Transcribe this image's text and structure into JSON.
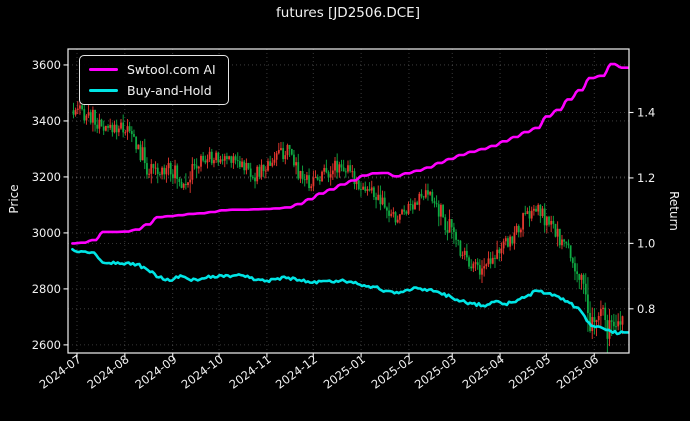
{
  "figure": {
    "title": "futures [JD2506.DCE]",
    "background": "#000000",
    "text_color": "#f2f2f2"
  },
  "legend": {
    "position": "upper-left",
    "items": [
      {
        "label": "Swtool.com AI",
        "color": "#ff00ff"
      },
      {
        "label": "Buy-and-Hold",
        "color": "#00e5e5"
      }
    ]
  },
  "axes": {
    "left_label": "Price",
    "right_label": "Return",
    "left_ticks": [
      {
        "v": 3600,
        "label": "3600"
      },
      {
        "v": 3400,
        "label": "3400"
      },
      {
        "v": 3200,
        "label": "3200"
      },
      {
        "v": 3000,
        "label": "3000"
      },
      {
        "v": 2800,
        "label": "2800"
      },
      {
        "v": 2600,
        "label": "2600"
      }
    ],
    "right_ticks": [
      {
        "v": 1.4,
        "label": "1.4"
      },
      {
        "v": 1.2,
        "label": "1.2"
      },
      {
        "v": 1.0,
        "label": "1.0"
      },
      {
        "v": 0.8,
        "label": "0.8"
      }
    ],
    "x_ticks": [
      "2024-07",
      "2024-08",
      "2024-09",
      "2024-10",
      "2024-11",
      "2024-12",
      "2025-01",
      "2025-02",
      "2025-03",
      "2025-04",
      "2025-05",
      "2025-06"
    ]
  },
  "chart_data": {
    "type": "candlestick",
    "title": "futures [JD2506.DCE]",
    "xlabel": "",
    "ylabel_left": "Price",
    "ylabel_right": "Return",
    "grid": true,
    "legend_position": "upper-left",
    "price_ylim": [
      2571,
      3657
    ],
    "return_ylim": [
      0.665,
      1.594
    ],
    "price_ticks": [
      2600,
      2800,
      3000,
      3200,
      3400,
      3600
    ],
    "return_ticks": [
      0.8,
      1.0,
      1.2,
      1.4
    ],
    "month_ticks": [
      "2024-07",
      "2024-08",
      "2024-09",
      "2024-10",
      "2024-11",
      "2024-12",
      "2025-01",
      "2025-02",
      "2025-03",
      "2025-04",
      "2025-05",
      "2025-06"
    ],
    "candle_up_color": "#e8382f",
    "candle_down_color": "#0eab43",
    "note": "weekly-sampled values read from plot; daily bars are denser in source",
    "x_dates": [
      "2024-06-28",
      "2024-07-05",
      "2024-07-12",
      "2024-07-19",
      "2024-07-26",
      "2024-08-02",
      "2024-08-09",
      "2024-08-16",
      "2024-08-23",
      "2024-08-30",
      "2024-09-06",
      "2024-09-13",
      "2024-09-20",
      "2024-09-27",
      "2024-10-04",
      "2024-10-11",
      "2024-10-18",
      "2024-10-25",
      "2024-11-01",
      "2024-11-08",
      "2024-11-15",
      "2024-11-22",
      "2024-11-29",
      "2024-12-06",
      "2024-12-13",
      "2024-12-20",
      "2024-12-27",
      "2025-01-03",
      "2025-01-10",
      "2025-01-17",
      "2025-01-24",
      "2025-01-31",
      "2025-02-07",
      "2025-02-14",
      "2025-02-21",
      "2025-02-28",
      "2025-03-07",
      "2025-03-14",
      "2025-03-21",
      "2025-03-28",
      "2025-04-04",
      "2025-04-11",
      "2025-04-18",
      "2025-04-25",
      "2025-05-02",
      "2025-05-09",
      "2025-05-16",
      "2025-05-23",
      "2025-05-30",
      "2025-06-06",
      "2025-06-13",
      "2025-06-20"
    ],
    "price_weekly": {
      "close": [
        3420,
        3435,
        3410,
        3360,
        3380,
        3375,
        3320,
        3235,
        3200,
        3255,
        3180,
        3210,
        3255,
        3270,
        3260,
        3275,
        3240,
        3205,
        3235,
        3280,
        3290,
        3225,
        3180,
        3205,
        3230,
        3245,
        3200,
        3165,
        3140,
        3085,
        3045,
        3090,
        3120,
        3135,
        3085,
        3015,
        2950,
        2900,
        2865,
        2930,
        2945,
        2995,
        3055,
        3085,
        3040,
        2990,
        2940,
        2840,
        2660,
        2705,
        2640,
        2690
      ],
      "high": [
        3455,
        3470,
        3455,
        3420,
        3430,
        3440,
        3405,
        3330,
        3260,
        3285,
        3255,
        3255,
        3295,
        3305,
        3300,
        3310,
        3290,
        3260,
        3275,
        3315,
        3325,
        3300,
        3235,
        3245,
        3280,
        3285,
        3255,
        3225,
        3205,
        3165,
        3115,
        3130,
        3160,
        3170,
        3150,
        3100,
        3030,
        2970,
        2925,
        2975,
        2990,
        3035,
        3095,
        3115,
        3100,
        3055,
        3000,
        2910,
        2850,
        2800,
        2745,
        2740
      ],
      "low": [
        3385,
        3380,
        3345,
        3330,
        3350,
        3340,
        3285,
        3185,
        3140,
        3175,
        3125,
        3125,
        3180,
        3215,
        3220,
        3230,
        3195,
        3165,
        3180,
        3220,
        3235,
        3175,
        3140,
        3155,
        3175,
        3195,
        3155,
        3135,
        3105,
        3055,
        3015,
        3040,
        3070,
        3085,
        3025,
        2955,
        2885,
        2845,
        2825,
        2850,
        2880,
        2930,
        2990,
        3010,
        2975,
        2935,
        2895,
        2790,
        2610,
        2620,
        2575,
        2600
      ]
    },
    "series": [
      {
        "name": "Swtool.com AI",
        "axis": "return",
        "color": "#ff00ff",
        "style": "step",
        "values": [
          1.0,
          1.002,
          1.01,
          1.035,
          1.035,
          1.036,
          1.042,
          1.058,
          1.08,
          1.083,
          1.086,
          1.09,
          1.092,
          1.096,
          1.101,
          1.103,
          1.103,
          1.104,
          1.105,
          1.107,
          1.11,
          1.12,
          1.135,
          1.152,
          1.165,
          1.18,
          1.192,
          1.207,
          1.214,
          1.215,
          1.205,
          1.214,
          1.222,
          1.232,
          1.246,
          1.258,
          1.27,
          1.28,
          1.288,
          1.298,
          1.312,
          1.325,
          1.34,
          1.353,
          1.388,
          1.408,
          1.44,
          1.468,
          1.505,
          1.512,
          1.548,
          1.537
        ]
      },
      {
        "name": "Buy-and-Hold",
        "axis": "return",
        "color": "#00e5e5",
        "style": "wiggle",
        "values": [
          0.982,
          0.975,
          0.972,
          0.94,
          0.938,
          0.94,
          0.936,
          0.918,
          0.896,
          0.886,
          0.902,
          0.886,
          0.893,
          0.9,
          0.898,
          0.902,
          0.898,
          0.888,
          0.886,
          0.893,
          0.895,
          0.888,
          0.88,
          0.884,
          0.882,
          0.889,
          0.879,
          0.872,
          0.867,
          0.855,
          0.851,
          0.858,
          0.862,
          0.859,
          0.849,
          0.837,
          0.824,
          0.816,
          0.81,
          0.821,
          0.815,
          0.821,
          0.838,
          0.855,
          0.847,
          0.837,
          0.818,
          0.795,
          0.748,
          0.742,
          0.727,
          0.728
        ]
      }
    ]
  }
}
